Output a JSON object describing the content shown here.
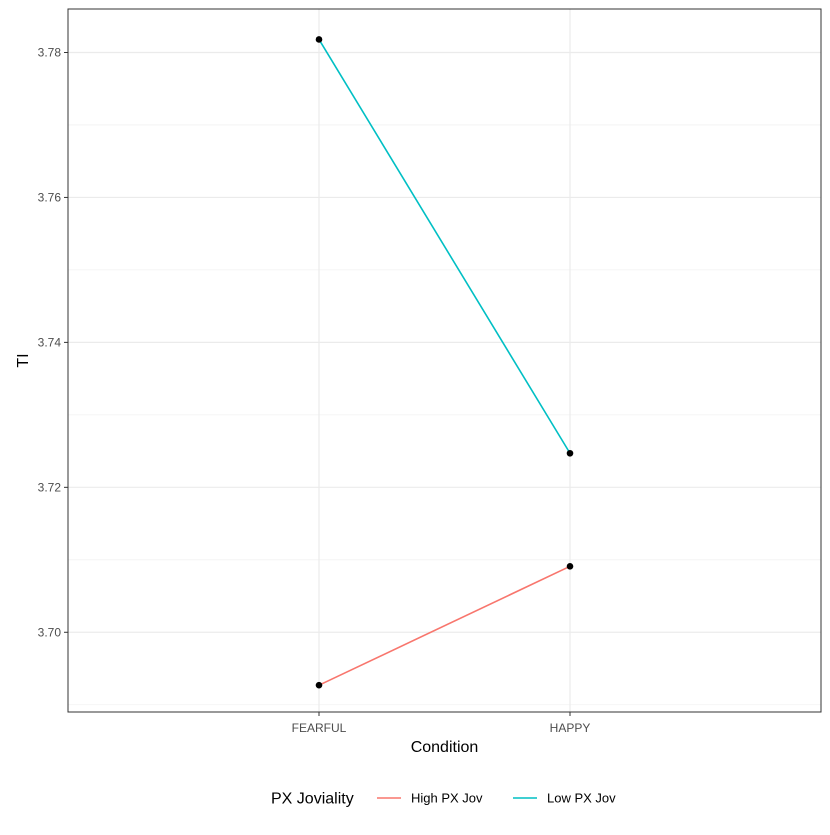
{
  "chart_data": {
    "type": "line",
    "categories": [
      "FEARFUL",
      "HAPPY"
    ],
    "xlabel": "Condition",
    "ylabel": "TI",
    "ylim": [
      3.689,
      3.786
    ],
    "yticks": [
      3.7,
      3.72,
      3.74,
      3.76,
      3.78
    ],
    "ytick_labels": [
      "3.70",
      "3.72",
      "3.74",
      "3.76",
      "3.78"
    ],
    "grid": true,
    "legend": {
      "title": "PX Joviality",
      "position": "bottom"
    },
    "series": [
      {
        "name": "High PX Jov",
        "color": "#F8766D",
        "values": [
          3.6927,
          3.7091
        ]
      },
      {
        "name": "Low PX Jov",
        "color": "#00BFC4",
        "values": [
          3.7818,
          3.7247
        ]
      }
    ],
    "point_color": "#000000"
  }
}
